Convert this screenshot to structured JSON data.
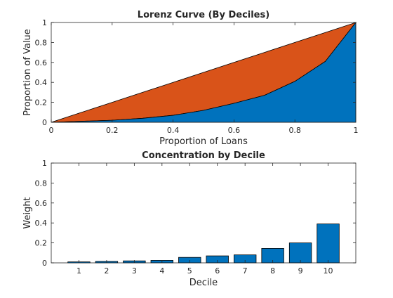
{
  "chart_data": [
    {
      "type": "area",
      "title": "Lorenz Curve (By Deciles)",
      "xlabel": "Proportion of Loans",
      "ylabel": "Proportion of Value",
      "xlim": [
        0,
        1
      ],
      "ylim": [
        0,
        1
      ],
      "xticks": [
        "0",
        "0.2",
        "0.4",
        "0.6",
        "0.8",
        "1"
      ],
      "yticks": [
        "0",
        "0.2",
        "0.4",
        "0.6",
        "0.8",
        "1"
      ],
      "grid": false,
      "x": [
        0,
        0.1,
        0.2,
        0.3,
        0.4,
        0.5,
        0.6,
        0.7,
        0.8,
        0.9,
        1.0
      ],
      "series": [
        {
          "values": [
            0,
            0.1,
            0.2,
            0.3,
            0.4,
            0.5,
            0.6,
            0.7,
            0.8,
            0.9,
            1.0
          ],
          "color": "#D95319"
        },
        {
          "values": [
            0,
            0.01,
            0.02,
            0.04,
            0.07,
            0.12,
            0.19,
            0.27,
            0.41,
            0.61,
            1.0
          ],
          "color": "#0072BD"
        }
      ]
    },
    {
      "type": "bar",
      "title": "Concentration by Decile",
      "xlabel": "Decile",
      "ylabel": "Weight",
      "categories": [
        "1",
        "2",
        "3",
        "4",
        "5",
        "6",
        "7",
        "8",
        "9",
        "10"
      ],
      "values": [
        0.01,
        0.015,
        0.02,
        0.025,
        0.055,
        0.07,
        0.08,
        0.145,
        0.2,
        0.39
      ],
      "ylim": [
        0,
        1
      ],
      "yticks": [
        "0",
        "0.2",
        "0.4",
        "0.6",
        "0.8",
        "1"
      ],
      "color": "#0072BD",
      "grid": false
    }
  ]
}
